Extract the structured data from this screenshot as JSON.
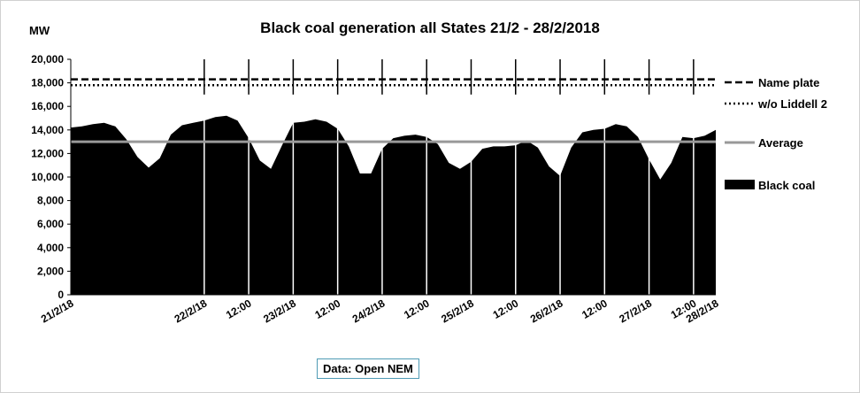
{
  "chart_data": {
    "type": "area",
    "title": "Black coal generation all States 21/2 - 28/2/2018",
    "ylabel": "MW",
    "ylim": [
      0,
      20000
    ],
    "y_ticks": [
      "0",
      "2,000",
      "4,000",
      "6,000",
      "8,000",
      "10,000",
      "12,000",
      "14,000",
      "16,000",
      "18,000",
      "20,000"
    ],
    "x_tick_labels": [
      "21/2/18",
      "22/2/18",
      "12:00",
      "23/2/18",
      "12:00",
      "24/2/18",
      "12:00",
      "25/2/18",
      "12:00",
      "26/2/18",
      "12:00",
      "27/2/18",
      "12:00",
      "28/2/18"
    ],
    "x_tick_hours": [
      0,
      36,
      48,
      60,
      72,
      84,
      96,
      108,
      120,
      132,
      144,
      156,
      168,
      180
    ],
    "x_range_hours": [
      0,
      174
    ],
    "grid": false,
    "legend_position": "right",
    "series": [
      {
        "name": "Name plate",
        "style": "dashed",
        "color": "#000000",
        "constant": 18300
      },
      {
        "name": "w/o Liddell 2",
        "style": "dotted",
        "color": "#000000",
        "constant": 17800
      },
      {
        "name": "Average",
        "style": "solid",
        "color": "#999999",
        "constant": 13000
      },
      {
        "name": "Black coal",
        "style": "area",
        "color": "#000000",
        "x_hours": [
          0,
          3,
          6,
          9,
          12,
          15,
          18,
          21,
          24,
          27,
          30,
          33,
          36,
          39,
          42,
          45,
          48,
          51,
          54,
          57,
          60,
          63,
          66,
          69,
          72,
          75,
          78,
          81,
          84,
          87,
          90,
          93,
          96,
          99,
          102,
          105,
          108,
          111,
          114,
          117,
          120,
          123,
          126,
          129,
          132,
          135,
          138,
          141,
          144,
          147,
          150,
          153,
          156,
          159,
          162,
          165,
          168,
          171,
          174
        ],
        "values": [
          14200,
          14300,
          14500,
          14600,
          14300,
          13200,
          11700,
          10800,
          11600,
          13600,
          14400,
          14600,
          14800,
          15100,
          15200,
          14800,
          13300,
          11400,
          10700,
          12700,
          14600,
          14700,
          14900,
          14700,
          14100,
          12600,
          10300,
          10300,
          12400,
          13300,
          13500,
          13600,
          13400,
          12800,
          11200,
          10700,
          11300,
          12400,
          12600,
          12600,
          12700,
          13100,
          12500,
          10900,
          10100,
          12500,
          13800,
          14000,
          14100,
          14500,
          14300,
          13400,
          11500,
          9800,
          11200,
          13400,
          13300,
          13500,
          14000
        ]
      }
    ]
  },
  "source_label": "Data: Open NEM"
}
